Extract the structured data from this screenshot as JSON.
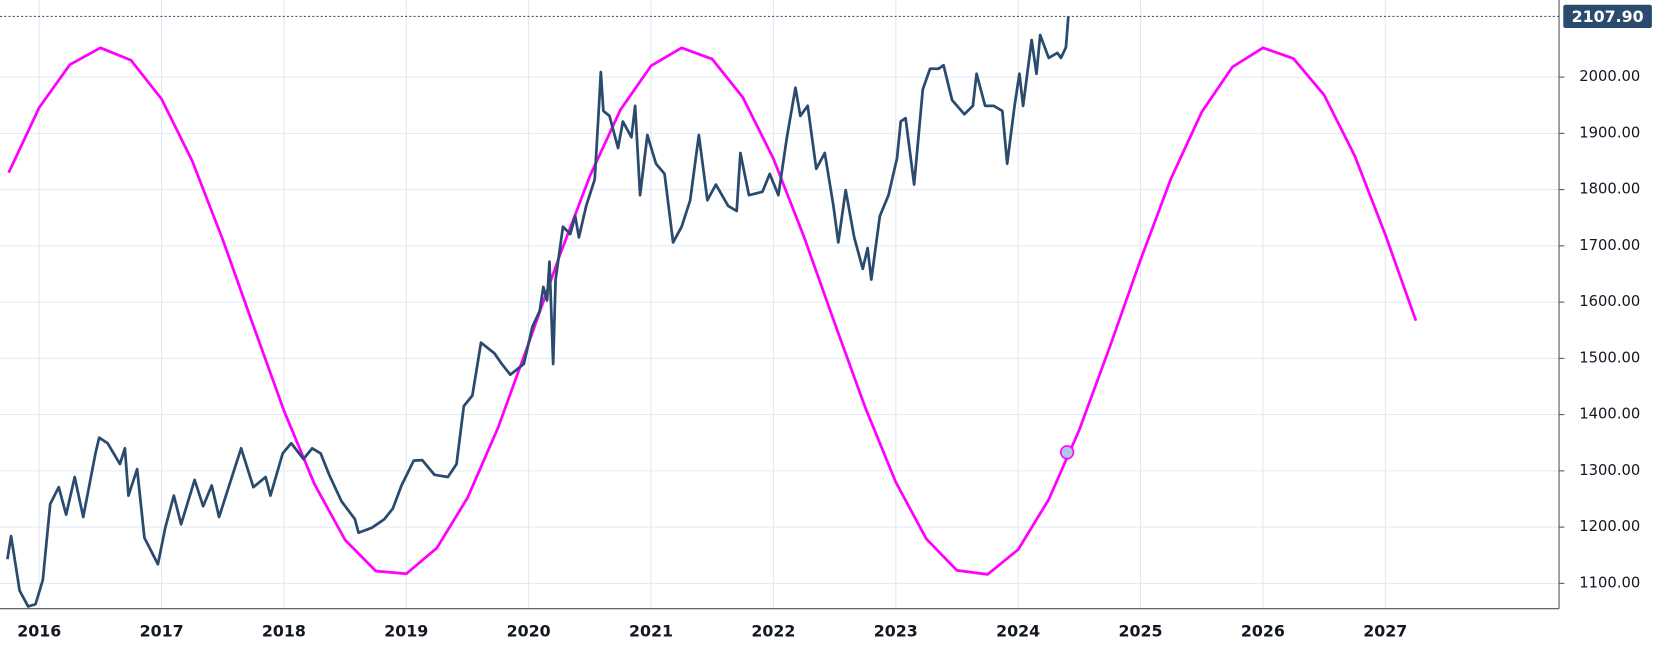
{
  "chart_data": {
    "type": "line",
    "xlim": [
      2015.74,
      2028.42
    ],
    "ylim": [
      1055,
      2137
    ],
    "xticks": [
      2016,
      2017,
      2018,
      2019,
      2020,
      2021,
      2022,
      2023,
      2024,
      2025,
      2026,
      2027
    ],
    "yticks": [
      {
        "value": 1100,
        "label": "1100.00"
      },
      {
        "value": 1200,
        "label": "1200.00"
      },
      {
        "value": 1300,
        "label": "1300.00"
      },
      {
        "value": 1400,
        "label": "1400.00"
      },
      {
        "value": 1500,
        "label": "1500.00"
      },
      {
        "value": 1600,
        "label": "1600.00"
      },
      {
        "value": 1700,
        "label": "1700.00"
      },
      {
        "value": 1800,
        "label": "1800.00"
      },
      {
        "value": 1900,
        "label": "1900.00"
      },
      {
        "value": 2000,
        "label": "2000.00"
      }
    ],
    "grid": true,
    "series": [
      {
        "color": "#ff00ff",
        "x": [
          2015.75,
          2016,
          2016.25,
          2016.5,
          2016.75,
          2017,
          2017.25,
          2017.5,
          2017.75,
          2018,
          2018.25,
          2018.5,
          2018.75,
          2019,
          2019.25,
          2019.5,
          2019.75,
          2020,
          2020.25,
          2020.5,
          2020.75,
          2021,
          2021.25,
          2021.5,
          2021.75,
          2022,
          2022.25,
          2022.5,
          2022.75,
          2023,
          2023.25,
          2023.5,
          2023.75,
          2024,
          2024.25,
          2024.5,
          2024.75,
          2025,
          2025.25,
          2025.5,
          2025.75,
          2026,
          2026.25,
          2026.5,
          2026.75,
          2027,
          2027.25
        ],
        "values": [
          1830,
          1946,
          2022,
          2052,
          2030,
          1961,
          1851,
          1711,
          1558,
          1407,
          1276,
          1177,
          1122,
          1117,
          1163,
          1252,
          1377,
          1527,
          1681,
          1824,
          1942,
          2020,
          2052,
          2032,
          1964,
          1855,
          1716,
          1563,
          1413,
          1280,
          1179,
          1123,
          1116,
          1160,
          1249,
          1373,
          1521,
          1675,
          1820,
          1938,
          2018,
          2052,
          2033,
          1968,
          1860,
          1720,
          1567
        ]
      },
      {
        "color": "#2a4b6e",
        "x": [
          2015.74,
          2015.77,
          2015.84,
          2015.91,
          2015.97,
          2016.03,
          2016.09,
          2016.16,
          2016.22,
          2016.29,
          2016.36,
          2016.46,
          2016.49,
          2016.56,
          2016.66,
          2016.7,
          2016.73,
          2016.8,
          2016.86,
          2016.97,
          2017.03,
          2017.1,
          2017.16,
          2017.27,
          2017.34,
          2017.41,
          2017.47,
          2017.58,
          2017.65,
          2017.75,
          2017.85,
          2017.89,
          2017.99,
          2018.06,
          2018.16,
          2018.23,
          2018.3,
          2018.37,
          2018.47,
          2018.58,
          2018.61,
          2018.72,
          2018.82,
          2018.89,
          2018.96,
          2019.06,
          2019.13,
          2019.23,
          2019.34,
          2019.41,
          2019.47,
          2019.54,
          2019.61,
          2019.72,
          2019.78,
          2019.85,
          2019.96,
          2020.03,
          2020.09,
          2020.12,
          2020.15,
          2020.17,
          2020.2,
          2020.22,
          2020.28,
          2020.34,
          2020.38,
          2020.41,
          2020.47,
          2020.54,
          2020.57,
          2020.59,
          2020.61,
          2020.66,
          2020.73,
          2020.77,
          2020.84,
          2020.87,
          2020.91,
          2020.97,
          2021.04,
          2021.11,
          2021.18,
          2021.25,
          2021.32,
          2021.39,
          2021.46,
          2021.53,
          2021.63,
          2021.7,
          2021.73,
          2021.8,
          2021.91,
          2021.97,
          2022.04,
          2022.11,
          2022.18,
          2022.22,
          2022.28,
          2022.35,
          2022.42,
          2022.49,
          2022.53,
          2022.59,
          2022.66,
          2022.73,
          2022.77,
          2022.8,
          2022.87,
          2022.94,
          2023.01,
          2023.04,
          2023.08,
          2023.15,
          2023.22,
          2023.28,
          2023.35,
          2023.39,
          2023.46,
          2023.56,
          2023.63,
          2023.66,
          2023.73,
          2023.8,
          2023.87,
          2023.91,
          2023.97,
          2024.01,
          2024.04,
          2024.11,
          2024.15,
          2024.18,
          2024.25,
          2024.32,
          2024.35,
          2024.39,
          2024.41
        ],
        "values": [
          1143,
          1184,
          1087,
          1059,
          1063,
          1106,
          1241,
          1271,
          1222,
          1289,
          1218,
          1331,
          1359,
          1349,
          1312,
          1340,
          1256,
          1303,
          1181,
          1134,
          1199,
          1256,
          1205,
          1284,
          1237,
          1274,
          1218,
          1293,
          1340,
          1271,
          1289,
          1256,
          1331,
          1349,
          1321,
          1340,
          1331,
          1293,
          1246,
          1214,
          1190,
          1199,
          1214,
          1233,
          1274,
          1318,
          1319,
          1293,
          1289,
          1312,
          1415,
          1434,
          1528,
          1509,
          1490,
          1471,
          1490,
          1556,
          1584,
          1627,
          1603,
          1672,
          1490,
          1640,
          1734,
          1721,
          1753,
          1715,
          1771,
          1818,
          1931,
          2009,
          1940,
          1931,
          1874,
          1921,
          1893,
          1949,
          1790,
          1897,
          1846,
          1828,
          1706,
          1734,
          1781,
          1897,
          1781,
          1809,
          1771,
          1762,
          1865,
          1790,
          1796,
          1828,
          1790,
          1893,
          1981,
          1931,
          1949,
          1837,
          1865,
          1771,
          1706,
          1799,
          1715,
          1659,
          1696,
          1640,
          1753,
          1790,
          1856,
          1921,
          1927,
          1809,
          1978,
          2015,
          2015,
          2021,
          1959,
          1934,
          1949,
          2006,
          1949,
          1949,
          1940,
          1846,
          1949,
          2006,
          1949,
          2066,
          2006,
          2075,
          2034,
          2043,
          2034,
          2053,
          2107.9
        ]
      }
    ],
    "highlight_point": {
      "x": 2024.4,
      "y": 1333
    },
    "last_price": {
      "value": 2107.9,
      "label": "2107.90"
    }
  }
}
